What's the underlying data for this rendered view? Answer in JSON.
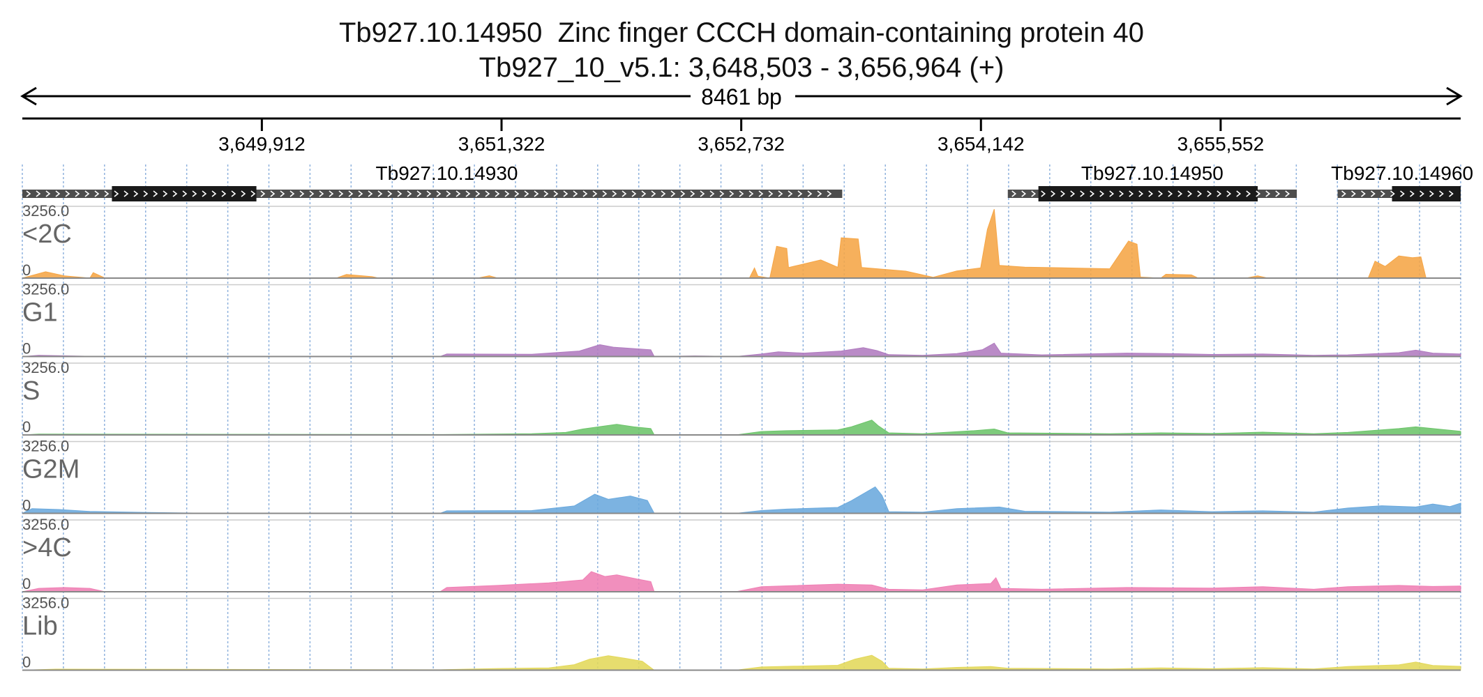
{
  "title": {
    "line1": "Tb927.10.14950  Zinc finger CCCH domain-containing protein 40",
    "line2": "Tb927_10_v5.1: 3,648,503 - 3,656,964 (+)"
  },
  "ruler": {
    "span_label": "8461 bp",
    "start": 3648503,
    "end": 3656964,
    "ticks": [
      {
        "pos": 3649912,
        "label": "3,649,912"
      },
      {
        "pos": 3651322,
        "label": "3,651,322"
      },
      {
        "pos": 3652732,
        "label": "3,652,732"
      },
      {
        "pos": 3654142,
        "label": "3,654,142"
      },
      {
        "pos": 3655552,
        "label": "3,655,552"
      }
    ]
  },
  "genes": [
    {
      "name": "Tb927.10.14930",
      "start": 3648503,
      "end": 3653326,
      "cds_start": 3649030,
      "cds_end": 3649880,
      "label_pos": 3651000
    },
    {
      "name": "Tb927.10.14950",
      "start": 3654300,
      "end": 3656000,
      "cds_start": 3654480,
      "cds_end": 3655770,
      "label_pos": 3655150
    },
    {
      "name": "Tb927.10.14960",
      "start": 3656240,
      "end": 3656964,
      "cds_start": 3656560,
      "cds_end": 3656964,
      "label_pos": 3656620
    }
  ],
  "colors": {
    "<2C": "#f5a545",
    "G1": "#b07bbf",
    "S": "#6cc46a",
    "G2M": "#6aa9dd",
    ">4C": "#ef7fb4",
    "Lib": "#e3d85a",
    "gene_utr": "#4d4d4d",
    "gene_cds": "#1a1a1a",
    "grid": "#8fb2dd"
  },
  "chart_data": {
    "type": "area",
    "x_unit": "genomic position (bp)",
    "xlim": [
      3648503,
      3656964
    ],
    "ylim": [
      0,
      3256.0
    ],
    "y_max_label": "3256.0",
    "y_min_label": "0",
    "tracks": [
      {
        "name": "<2C",
        "points": [
          [
            3648503,
            0
          ],
          [
            3648640,
            300
          ],
          [
            3648750,
            110
          ],
          [
            3648900,
            0
          ],
          [
            3648920,
            260
          ],
          [
            3648990,
            0
          ],
          [
            3650350,
            0
          ],
          [
            3650410,
            170
          ],
          [
            3650560,
            70
          ],
          [
            3650600,
            0
          ],
          [
            3651180,
            0
          ],
          [
            3651250,
            110
          ],
          [
            3651300,
            0
          ],
          [
            3652780,
            0
          ],
          [
            3652810,
            480
          ],
          [
            3652830,
            90
          ],
          [
            3652900,
            0
          ],
          [
            3652940,
            1500
          ],
          [
            3653000,
            1400
          ],
          [
            3653010,
            500
          ],
          [
            3653200,
            860
          ],
          [
            3653300,
            510
          ],
          [
            3653320,
            1900
          ],
          [
            3653420,
            1850
          ],
          [
            3653440,
            500
          ],
          [
            3653700,
            330
          ],
          [
            3653860,
            40
          ],
          [
            3654000,
            340
          ],
          [
            3654140,
            480
          ],
          [
            3654180,
            2300
          ],
          [
            3654220,
            3256
          ],
          [
            3654250,
            600
          ],
          [
            3654400,
            520
          ],
          [
            3654900,
            440
          ],
          [
            3655010,
            1750
          ],
          [
            3655060,
            1600
          ],
          [
            3655080,
            50
          ],
          [
            3655200,
            0
          ],
          [
            3655230,
            180
          ],
          [
            3655380,
            150
          ],
          [
            3655420,
            0
          ],
          [
            3655700,
            0
          ],
          [
            3655770,
            110
          ],
          [
            3655830,
            0
          ],
          [
            3656420,
            0
          ],
          [
            3656460,
            800
          ],
          [
            3656520,
            550
          ],
          [
            3656600,
            1050
          ],
          [
            3656680,
            960
          ],
          [
            3656730,
            1000
          ],
          [
            3656760,
            0
          ],
          [
            3656964,
            0
          ]
        ]
      },
      {
        "name": "G1",
        "points": [
          [
            3648503,
            0
          ],
          [
            3648600,
            60
          ],
          [
            3648990,
            0
          ],
          [
            3650960,
            0
          ],
          [
            3651000,
            120
          ],
          [
            3651500,
            110
          ],
          [
            3651780,
            260
          ],
          [
            3651900,
            560
          ],
          [
            3651980,
            440
          ],
          [
            3652200,
            320
          ],
          [
            3652220,
            0
          ],
          [
            3652460,
            30
          ],
          [
            3652700,
            0
          ],
          [
            3652850,
            120
          ],
          [
            3652950,
            220
          ],
          [
            3653100,
            160
          ],
          [
            3653320,
            260
          ],
          [
            3653450,
            420
          ],
          [
            3653530,
            280
          ],
          [
            3653600,
            90
          ],
          [
            3653800,
            60
          ],
          [
            3654000,
            140
          ],
          [
            3654150,
            320
          ],
          [
            3654220,
            630
          ],
          [
            3654260,
            160
          ],
          [
            3654500,
            80
          ],
          [
            3655000,
            160
          ],
          [
            3655300,
            130
          ],
          [
            3655500,
            100
          ],
          [
            3655800,
            120
          ],
          [
            3656100,
            60
          ],
          [
            3656300,
            80
          ],
          [
            3656600,
            180
          ],
          [
            3656700,
            300
          ],
          [
            3656800,
            160
          ],
          [
            3656964,
            120
          ]
        ]
      },
      {
        "name": "S",
        "points": [
          [
            3648503,
            0
          ],
          [
            3648600,
            40
          ],
          [
            3650960,
            20
          ],
          [
            3651500,
            60
          ],
          [
            3651700,
            120
          ],
          [
            3651800,
            280
          ],
          [
            3652000,
            500
          ],
          [
            3652100,
            380
          ],
          [
            3652200,
            300
          ],
          [
            3652220,
            0
          ],
          [
            3652700,
            0
          ],
          [
            3652850,
            160
          ],
          [
            3653000,
            200
          ],
          [
            3653300,
            240
          ],
          [
            3653380,
            380
          ],
          [
            3653500,
            700
          ],
          [
            3653540,
            420
          ],
          [
            3653600,
            100
          ],
          [
            3653800,
            60
          ],
          [
            3654100,
            200
          ],
          [
            3654220,
            280
          ],
          [
            3654300,
            100
          ],
          [
            3654900,
            60
          ],
          [
            3655200,
            100
          ],
          [
            3655500,
            70
          ],
          [
            3655800,
            130
          ],
          [
            3656100,
            60
          ],
          [
            3656300,
            120
          ],
          [
            3656600,
            300
          ],
          [
            3656700,
            380
          ],
          [
            3656964,
            170
          ]
        ]
      },
      {
        "name": "G2M",
        "points": [
          [
            3648503,
            0
          ],
          [
            3648560,
            220
          ],
          [
            3648720,
            180
          ],
          [
            3648900,
            90
          ],
          [
            3649250,
            40
          ],
          [
            3649700,
            0
          ],
          [
            3650960,
            0
          ],
          [
            3651000,
            120
          ],
          [
            3651500,
            130
          ],
          [
            3651750,
            350
          ],
          [
            3651870,
            900
          ],
          [
            3651950,
            660
          ],
          [
            3652080,
            820
          ],
          [
            3652180,
            610
          ],
          [
            3652220,
            0
          ],
          [
            3652700,
            0
          ],
          [
            3652850,
            130
          ],
          [
            3653000,
            200
          ],
          [
            3653300,
            280
          ],
          [
            3653380,
            600
          ],
          [
            3653520,
            1250
          ],
          [
            3653560,
            850
          ],
          [
            3653600,
            80
          ],
          [
            3653800,
            60
          ],
          [
            3654000,
            220
          ],
          [
            3654250,
            300
          ],
          [
            3654400,
            100
          ],
          [
            3654900,
            60
          ],
          [
            3655200,
            160
          ],
          [
            3655500,
            80
          ],
          [
            3655800,
            120
          ],
          [
            3656100,
            60
          ],
          [
            3656300,
            250
          ],
          [
            3656500,
            360
          ],
          [
            3656700,
            300
          ],
          [
            3656800,
            440
          ],
          [
            3656900,
            320
          ],
          [
            3656964,
            480
          ]
        ]
      },
      {
        "name": ">4C",
        "points": [
          [
            3648503,
            0
          ],
          [
            3648600,
            160
          ],
          [
            3648750,
            200
          ],
          [
            3648900,
            160
          ],
          [
            3648990,
            0
          ],
          [
            3650960,
            0
          ],
          [
            3651000,
            200
          ],
          [
            3651300,
            300
          ],
          [
            3651600,
            420
          ],
          [
            3651800,
            560
          ],
          [
            3651850,
            950
          ],
          [
            3651930,
            720
          ],
          [
            3652000,
            800
          ],
          [
            3652120,
            600
          ],
          [
            3652200,
            480
          ],
          [
            3652220,
            0
          ],
          [
            3652700,
            0
          ],
          [
            3652850,
            240
          ],
          [
            3653000,
            280
          ],
          [
            3653300,
            360
          ],
          [
            3653500,
            320
          ],
          [
            3653600,
            120
          ],
          [
            3653800,
            90
          ],
          [
            3654000,
            320
          ],
          [
            3654200,
            390
          ],
          [
            3654230,
            660
          ],
          [
            3654260,
            160
          ],
          [
            3654500,
            120
          ],
          [
            3655000,
            200
          ],
          [
            3655500,
            170
          ],
          [
            3655800,
            240
          ],
          [
            3656100,
            120
          ],
          [
            3656300,
            240
          ],
          [
            3656600,
            300
          ],
          [
            3656800,
            250
          ],
          [
            3656964,
            270
          ]
        ]
      },
      {
        "name": "Lib",
        "points": [
          [
            3648503,
            0
          ],
          [
            3648700,
            50
          ],
          [
            3650960,
            20
          ],
          [
            3651300,
            80
          ],
          [
            3651600,
            110
          ],
          [
            3651750,
            260
          ],
          [
            3651840,
            520
          ],
          [
            3651950,
            680
          ],
          [
            3652050,
            560
          ],
          [
            3652150,
            420
          ],
          [
            3652220,
            0
          ],
          [
            3652700,
            0
          ],
          [
            3652850,
            150
          ],
          [
            3653000,
            180
          ],
          [
            3653300,
            230
          ],
          [
            3653400,
            520
          ],
          [
            3653500,
            700
          ],
          [
            3653560,
            420
          ],
          [
            3653600,
            90
          ],
          [
            3653800,
            60
          ],
          [
            3654000,
            130
          ],
          [
            3654200,
            170
          ],
          [
            3654300,
            90
          ],
          [
            3654900,
            60
          ],
          [
            3655200,
            110
          ],
          [
            3655500,
            70
          ],
          [
            3655800,
            120
          ],
          [
            3656100,
            60
          ],
          [
            3656300,
            170
          ],
          [
            3656600,
            250
          ],
          [
            3656700,
            380
          ],
          [
            3656800,
            220
          ],
          [
            3656964,
            180
          ]
        ]
      }
    ]
  }
}
